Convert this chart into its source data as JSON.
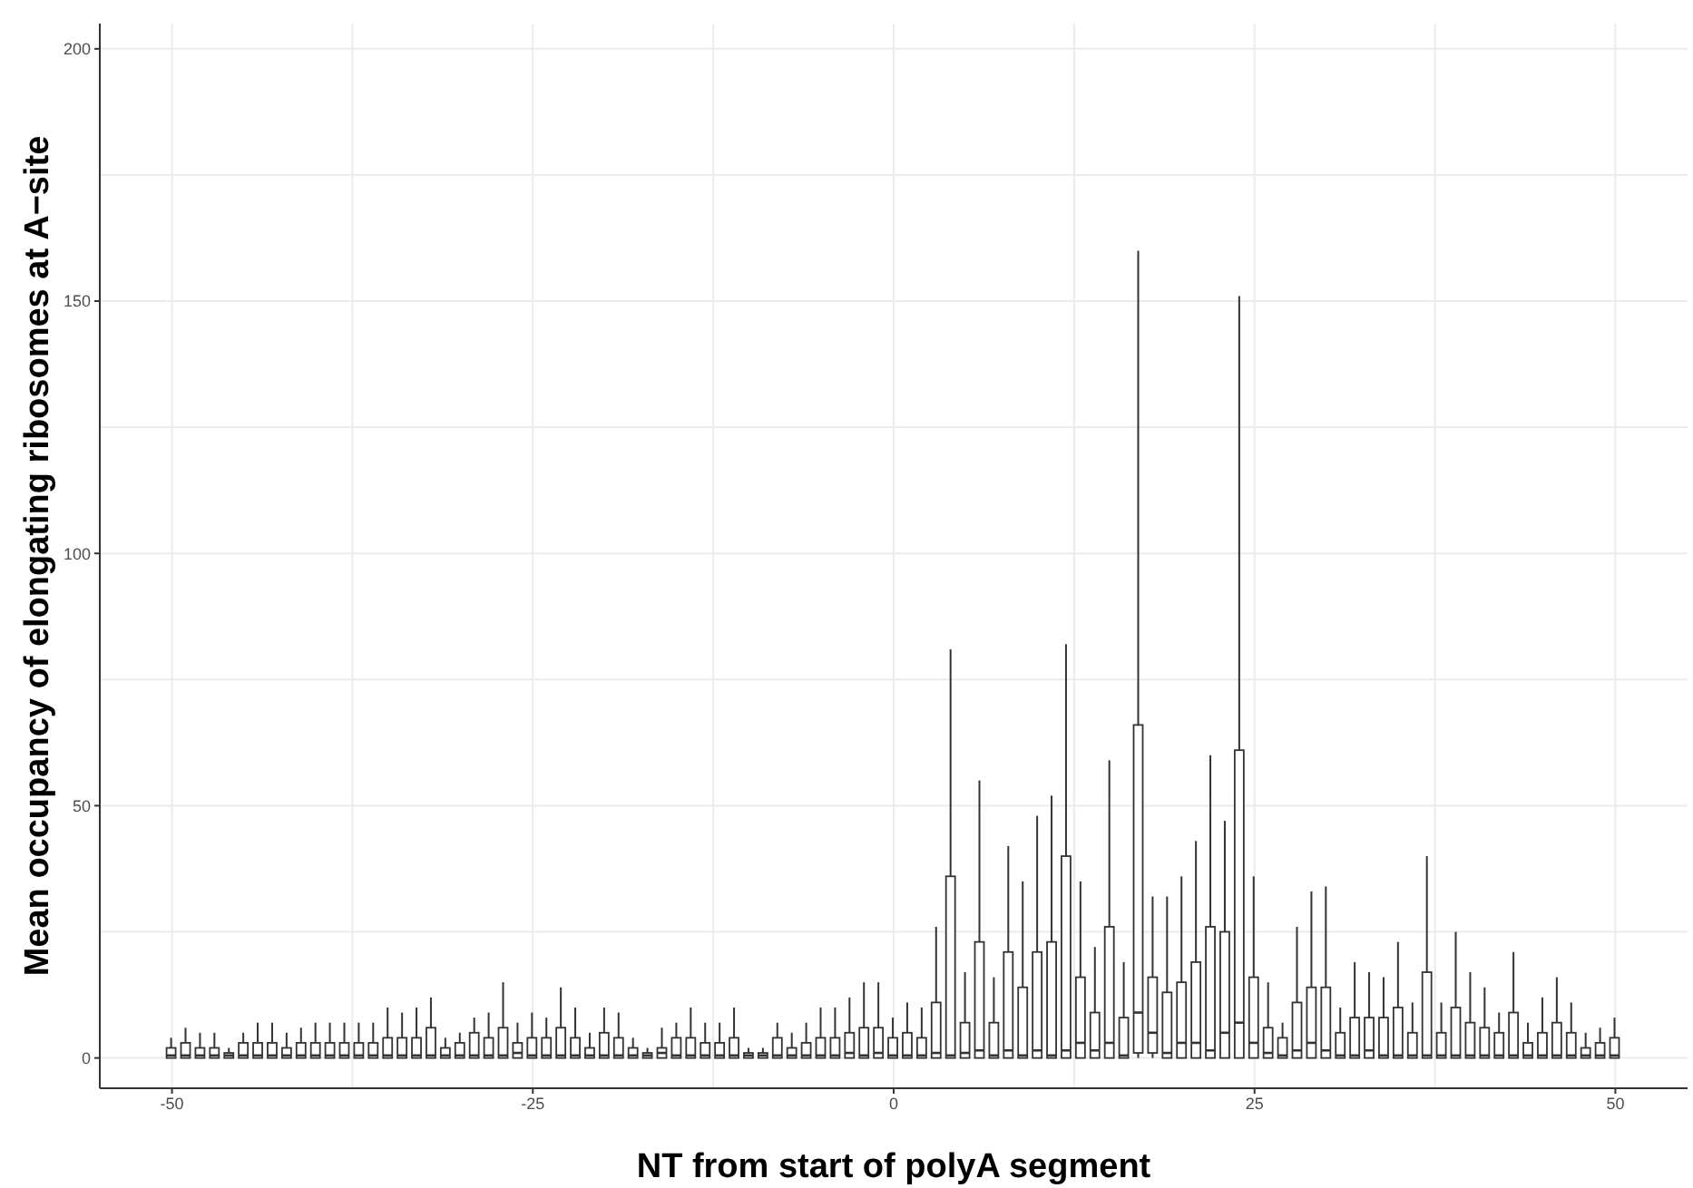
{
  "chart_data": {
    "type": "box",
    "xlabel": "NT from start of polyA segment",
    "ylabel": "Mean occupancy of elongating ribosomes at A−site",
    "categories": [
      "-50",
      null,
      null,
      null,
      null,
      null,
      null,
      null,
      null,
      null,
      null,
      null,
      null,
      null,
      null,
      null,
      null,
      null,
      null,
      null,
      null,
      null,
      null,
      null,
      null,
      "-25",
      null,
      null,
      null,
      null,
      null,
      null,
      null,
      null,
      null,
      null,
      null,
      null,
      null,
      null,
      null,
      null,
      null,
      null,
      null,
      null,
      null,
      null,
      null,
      null,
      "0",
      null,
      null,
      null,
      null,
      null,
      null,
      null,
      null,
      null,
      null,
      null,
      null,
      null,
      null,
      null,
      null,
      null,
      null,
      null,
      null,
      null,
      null,
      null,
      null,
      "25",
      null,
      null,
      null,
      null,
      null,
      null,
      null,
      null,
      null,
      null,
      null,
      null,
      null,
      null,
      null,
      null,
      null,
      null,
      null,
      null,
      null,
      null,
      null,
      null,
      "50"
    ],
    "boxes": [
      {
        "low": 0,
        "q1": 0,
        "median": 0.5,
        "q3": 2,
        "high": 4
      },
      {
        "low": 0,
        "q1": 0,
        "median": 0.5,
        "q3": 3,
        "high": 6
      },
      {
        "low": 0,
        "q1": 0,
        "median": 0.5,
        "q3": 2,
        "high": 5
      },
      {
        "low": 0,
        "q1": 0,
        "median": 0.5,
        "q3": 2,
        "high": 5
      },
      {
        "low": 0,
        "q1": 0,
        "median": 0.5,
        "q3": 1,
        "high": 2
      },
      {
        "low": 0,
        "q1": 0,
        "median": 0.5,
        "q3": 3,
        "high": 5
      },
      {
        "low": 0,
        "q1": 0,
        "median": 0.5,
        "q3": 3,
        "high": 7
      },
      {
        "low": 0,
        "q1": 0,
        "median": 0.5,
        "q3": 3,
        "high": 7
      },
      {
        "low": 0,
        "q1": 0,
        "median": 0.5,
        "q3": 2,
        "high": 5
      },
      {
        "low": 0,
        "q1": 0,
        "median": 0.5,
        "q3": 3,
        "high": 6
      },
      {
        "low": 0,
        "q1": 0,
        "median": 0.5,
        "q3": 3,
        "high": 7
      },
      {
        "low": 0,
        "q1": 0,
        "median": 0.5,
        "q3": 3,
        "high": 7
      },
      {
        "low": 0,
        "q1": 0,
        "median": 0.5,
        "q3": 3,
        "high": 7
      },
      {
        "low": 0,
        "q1": 0,
        "median": 0.5,
        "q3": 3,
        "high": 7
      },
      {
        "low": 0,
        "q1": 0,
        "median": 0.5,
        "q3": 3,
        "high": 7
      },
      {
        "low": 0,
        "q1": 0,
        "median": 0.5,
        "q3": 4,
        "high": 10
      },
      {
        "low": 0,
        "q1": 0,
        "median": 0.5,
        "q3": 4,
        "high": 9
      },
      {
        "low": 0,
        "q1": 0,
        "median": 0.5,
        "q3": 4,
        "high": 10
      },
      {
        "low": 0,
        "q1": 0,
        "median": 0.5,
        "q3": 6,
        "high": 12
      },
      {
        "low": 0,
        "q1": 0,
        "median": 0.5,
        "q3": 2,
        "high": 4
      },
      {
        "low": 0,
        "q1": 0,
        "median": 0.5,
        "q3": 3,
        "high": 5
      },
      {
        "low": 0,
        "q1": 0,
        "median": 0.5,
        "q3": 5,
        "high": 8
      },
      {
        "low": 0,
        "q1": 0,
        "median": 0.5,
        "q3": 4,
        "high": 9
      },
      {
        "low": 0,
        "q1": 0,
        "median": 0.5,
        "q3": 6,
        "high": 15
      },
      {
        "low": 0,
        "q1": 0,
        "median": 1,
        "q3": 3,
        "high": 7
      },
      {
        "low": 0,
        "q1": 0,
        "median": 0.5,
        "q3": 4,
        "high": 9
      },
      {
        "low": 0,
        "q1": 0,
        "median": 0.5,
        "q3": 4,
        "high": 8
      },
      {
        "low": 0,
        "q1": 0,
        "median": 0.5,
        "q3": 6,
        "high": 14
      },
      {
        "low": 0,
        "q1": 0,
        "median": 0.5,
        "q3": 4,
        "high": 10
      },
      {
        "low": 0,
        "q1": 0,
        "median": 0.5,
        "q3": 2,
        "high": 5
      },
      {
        "low": 0,
        "q1": 0,
        "median": 0.5,
        "q3": 5,
        "high": 10
      },
      {
        "low": 0,
        "q1": 0,
        "median": 0.5,
        "q3": 4,
        "high": 9
      },
      {
        "low": 0,
        "q1": 0,
        "median": 0.5,
        "q3": 2,
        "high": 4
      },
      {
        "low": 0,
        "q1": 0,
        "median": 0.5,
        "q3": 1,
        "high": 2
      },
      {
        "low": 0,
        "q1": 0,
        "median": 1,
        "q3": 2,
        "high": 6
      },
      {
        "low": 0,
        "q1": 0,
        "median": 0.5,
        "q3": 4,
        "high": 7
      },
      {
        "low": 0,
        "q1": 0,
        "median": 0.5,
        "q3": 4,
        "high": 10
      },
      {
        "low": 0,
        "q1": 0,
        "median": 0.5,
        "q3": 3,
        "high": 7
      },
      {
        "low": 0,
        "q1": 0,
        "median": 0.5,
        "q3": 3,
        "high": 7
      },
      {
        "low": 0,
        "q1": 0,
        "median": 0.5,
        "q3": 4,
        "high": 10
      },
      {
        "low": 0,
        "q1": 0,
        "median": 0.5,
        "q3": 1,
        "high": 2
      },
      {
        "low": 0,
        "q1": 0,
        "median": 0.5,
        "q3": 1,
        "high": 2
      },
      {
        "low": 0,
        "q1": 0,
        "median": 0.5,
        "q3": 4,
        "high": 7
      },
      {
        "low": 0,
        "q1": 0,
        "median": 0.5,
        "q3": 2,
        "high": 5
      },
      {
        "low": 0,
        "q1": 0,
        "median": 0.5,
        "q3": 3,
        "high": 7
      },
      {
        "low": 0,
        "q1": 0,
        "median": 0.5,
        "q3": 4,
        "high": 10
      },
      {
        "low": 0,
        "q1": 0,
        "median": 0.5,
        "q3": 4,
        "high": 10
      },
      {
        "low": 0,
        "q1": 0,
        "median": 1,
        "q3": 5,
        "high": 12
      },
      {
        "low": 0,
        "q1": 0,
        "median": 0.5,
        "q3": 6,
        "high": 15
      },
      {
        "low": 0,
        "q1": 0,
        "median": 1,
        "q3": 6,
        "high": 15
      },
      {
        "low": 0,
        "q1": 0,
        "median": 0.5,
        "q3": 4,
        "high": 8
      },
      {
        "low": 0,
        "q1": 0,
        "median": 0.5,
        "q3": 5,
        "high": 11
      },
      {
        "low": 0,
        "q1": 0,
        "median": 0.5,
        "q3": 4,
        "high": 10
      },
      {
        "low": 0,
        "q1": 0,
        "median": 1,
        "q3": 11,
        "high": 26
      },
      {
        "low": 0,
        "q1": 0,
        "median": 0.5,
        "q3": 36,
        "high": 81
      },
      {
        "low": 0,
        "q1": 0,
        "median": 1,
        "q3": 7,
        "high": 17
      },
      {
        "low": 0,
        "q1": 0,
        "median": 1.5,
        "q3": 23,
        "high": 55
      },
      {
        "low": 0,
        "q1": 0,
        "median": 0.5,
        "q3": 7,
        "high": 16
      },
      {
        "low": 0,
        "q1": 0,
        "median": 1.5,
        "q3": 21,
        "high": 42
      },
      {
        "low": 0,
        "q1": 0,
        "median": 0.5,
        "q3": 14,
        "high": 35
      },
      {
        "low": 0,
        "q1": 0,
        "median": 1.5,
        "q3": 21,
        "high": 48
      },
      {
        "low": 0,
        "q1": 0,
        "median": 0.5,
        "q3": 23,
        "high": 52
      },
      {
        "low": 0,
        "q1": 0,
        "median": 1.5,
        "q3": 40,
        "high": 82
      },
      {
        "low": 0,
        "q1": 0,
        "median": 3,
        "q3": 16,
        "high": 35
      },
      {
        "low": 0,
        "q1": 0,
        "median": 1.5,
        "q3": 9,
        "high": 22
      },
      {
        "low": 0,
        "q1": 0,
        "median": 3,
        "q3": 26,
        "high": 59
      },
      {
        "low": 0,
        "q1": 0,
        "median": 0.5,
        "q3": 8,
        "high": 19
      },
      {
        "low": 0,
        "q1": 1,
        "median": 9,
        "q3": 66,
        "high": 160
      },
      {
        "low": 0,
        "q1": 1,
        "median": 5,
        "q3": 16,
        "high": 32
      },
      {
        "low": 0,
        "q1": 0,
        "median": 1,
        "q3": 13,
        "high": 32
      },
      {
        "low": 0,
        "q1": 0,
        "median": 3,
        "q3": 15,
        "high": 36
      },
      {
        "low": 0,
        "q1": 0,
        "median": 3,
        "q3": 19,
        "high": 43
      },
      {
        "low": 0,
        "q1": 0,
        "median": 1.5,
        "q3": 26,
        "high": 60
      },
      {
        "low": 0,
        "q1": 0,
        "median": 5,
        "q3": 25,
        "high": 47
      },
      {
        "low": 0,
        "q1": 0,
        "median": 7,
        "q3": 61,
        "high": 151
      },
      {
        "low": 0,
        "q1": 0,
        "median": 3,
        "q3": 16,
        "high": 36
      },
      {
        "low": 0,
        "q1": 0,
        "median": 1,
        "q3": 6,
        "high": 15
      },
      {
        "low": 0,
        "q1": 0,
        "median": 0.5,
        "q3": 4,
        "high": 7
      },
      {
        "low": 0,
        "q1": 0,
        "median": 1.5,
        "q3": 11,
        "high": 26
      },
      {
        "low": 0,
        "q1": 0,
        "median": 3,
        "q3": 14,
        "high": 33
      },
      {
        "low": 0,
        "q1": 0,
        "median": 1.5,
        "q3": 14,
        "high": 34
      },
      {
        "low": 0,
        "q1": 0,
        "median": 0.5,
        "q3": 5,
        "high": 10
      },
      {
        "low": 0,
        "q1": 0,
        "median": 0.5,
        "q3": 8,
        "high": 19
      },
      {
        "low": 0,
        "q1": 0,
        "median": 1.5,
        "q3": 8,
        "high": 17
      },
      {
        "low": 0,
        "q1": 0,
        "median": 0.5,
        "q3": 8,
        "high": 16
      },
      {
        "low": 0,
        "q1": 0,
        "median": 0.5,
        "q3": 10,
        "high": 23
      },
      {
        "low": 0,
        "q1": 0,
        "median": 0.5,
        "q3": 5,
        "high": 11
      },
      {
        "low": 0,
        "q1": 0,
        "median": 0.5,
        "q3": 17,
        "high": 40
      },
      {
        "low": 0,
        "q1": 0,
        "median": 0.5,
        "q3": 5,
        "high": 11
      },
      {
        "low": 0,
        "q1": 0,
        "median": 0.5,
        "q3": 10,
        "high": 25
      },
      {
        "low": 0,
        "q1": 0,
        "median": 0.5,
        "q3": 7,
        "high": 17
      },
      {
        "low": 0,
        "q1": 0,
        "median": 0.5,
        "q3": 6,
        "high": 14
      },
      {
        "low": 0,
        "q1": 0,
        "median": 0.5,
        "q3": 5,
        "high": 9
      },
      {
        "low": 0,
        "q1": 0,
        "median": 0.5,
        "q3": 9,
        "high": 21
      },
      {
        "low": 0,
        "q1": 0,
        "median": 0.5,
        "q3": 3,
        "high": 7
      },
      {
        "low": 0,
        "q1": 0,
        "median": 0.5,
        "q3": 5,
        "high": 12
      },
      {
        "low": 0,
        "q1": 0,
        "median": 0.5,
        "q3": 7,
        "high": 16
      },
      {
        "low": 0,
        "q1": 0,
        "median": 0.5,
        "q3": 5,
        "high": 11
      },
      {
        "low": 0,
        "q1": 0,
        "median": 0.5,
        "q3": 2,
        "high": 5
      },
      {
        "low": 0,
        "q1": 0,
        "median": 0.5,
        "q3": 3,
        "high": 6
      },
      {
        "low": 0,
        "q1": 0,
        "median": 0.5,
        "q3": 4,
        "high": 8
      }
    ],
    "ylim": [
      -6,
      205
    ],
    "yticks": [
      0,
      50,
      100,
      150,
      200
    ],
    "grid": true
  }
}
